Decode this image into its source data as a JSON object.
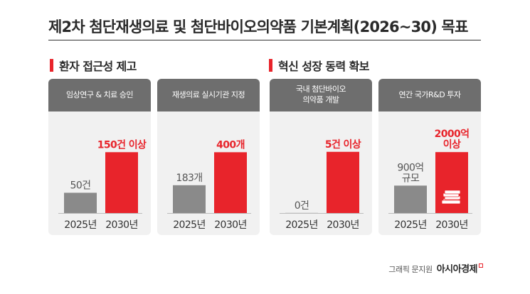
{
  "title": "제2차 첨단재생의료 및 첨단바이오의약품 기본계획(2026~30) 목표",
  "sections": [
    {
      "label": "환자 접근성 제고"
    },
    {
      "label": "혁신 성장 동력 확보"
    }
  ],
  "colors": {
    "accent": "#e8242b",
    "baseline": "#8a8a8a",
    "header": "#6e6e6e",
    "panel": "#f1f1f1"
  },
  "credit": {
    "text": "그래픽 문지원",
    "brand": "아시아경제"
  },
  "chart_data": [
    {
      "type": "bar",
      "title": "임상연구 & 치료 승인",
      "categories": [
        "2025년",
        "2030년"
      ],
      "values": [
        50,
        150
      ],
      "value_labels": [
        "50건",
        "150건 이상"
      ],
      "ylim": [
        0,
        175
      ]
    },
    {
      "type": "bar",
      "title": "재생의료 실시기관 지정",
      "categories": [
        "2025년",
        "2030년"
      ],
      "values": [
        183,
        400
      ],
      "value_labels": [
        "183개",
        "400개"
      ],
      "ylim": [
        0,
        467
      ]
    },
    {
      "type": "bar",
      "title": "국내 첨단바이오\n의약품 개발",
      "categories": [
        "2025년",
        "2030년"
      ],
      "values": [
        0,
        5
      ],
      "value_labels": [
        "0건",
        "5건 이상"
      ],
      "ylim": [
        0,
        5.8
      ]
    },
    {
      "type": "bar",
      "title": "연간 국가R&D 투자",
      "categories": [
        "2025년",
        "2030년"
      ],
      "values": [
        900,
        2000
      ],
      "value_labels": [
        "900억\n규모",
        "2000억\n이상"
      ],
      "value_unit": "억",
      "icon": "money-stack-icon",
      "ylim": [
        0,
        2330
      ]
    }
  ]
}
